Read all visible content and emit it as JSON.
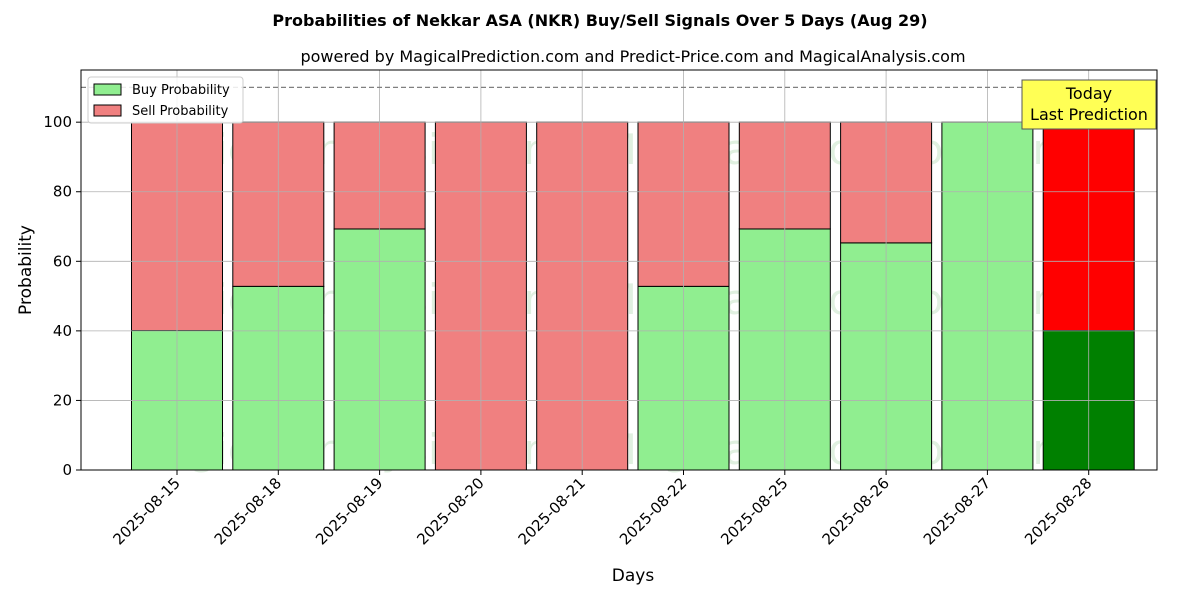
{
  "chart_data": {
    "type": "bar",
    "stacked": true,
    "title": "Probabilities of Nekkar ASA (NKR) Buy/Sell Signals Over 5 Days (Aug 29)",
    "subtitle": "powered by MagicalPrediction.com and Predict-Price.com and MagicalAnalysis.com",
    "xlabel": "Days",
    "ylabel": "Probability",
    "ylim": [
      0,
      115
    ],
    "yticks": [
      0,
      20,
      40,
      60,
      80,
      100
    ],
    "grid": true,
    "legend_position": "top-left",
    "reference_line": 110,
    "categories": [
      "2025-08-15",
      "2025-08-18",
      "2025-08-19",
      "2025-08-20",
      "2025-08-21",
      "2025-08-22",
      "2025-08-25",
      "2025-08-26",
      "2025-08-27",
      "2025-08-28"
    ],
    "series": [
      {
        "name": "Buy Probability",
        "color": "#90ee90",
        "last_color": "#008000",
        "values": [
          40.1,
          52.8,
          69.3,
          0,
          0,
          52.8,
          69.3,
          65.3,
          100,
          40.1
        ]
      },
      {
        "name": "Sell Probability",
        "color": "#f08080",
        "last_color": "#ff0000",
        "values": [
          59.9,
          47.2,
          30.7,
          100,
          100,
          47.2,
          30.7,
          34.7,
          0,
          59.9
        ]
      }
    ],
    "annotation": {
      "lines": [
        "Today",
        "Last Prediction"
      ],
      "bg": "#ffff55"
    },
    "watermarks": [
      "MagicalAnalysis.com",
      "MagicalPrediction.com"
    ]
  }
}
